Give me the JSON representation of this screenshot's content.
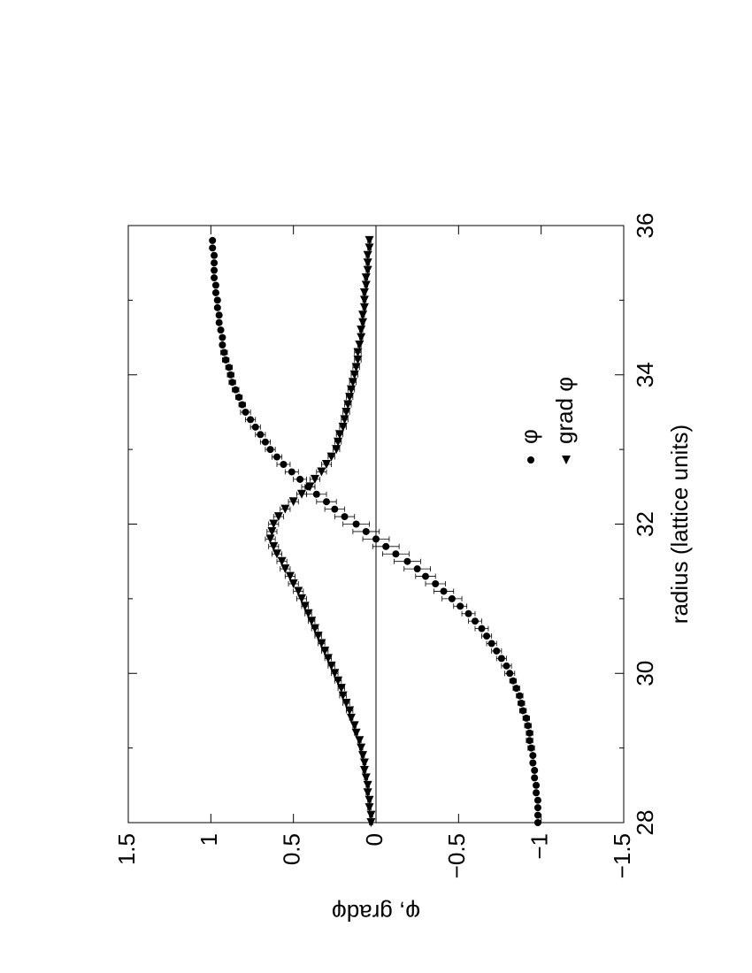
{
  "chart_data": {
    "type": "scatter",
    "x_label": "radius (lattice units)",
    "y_label": "φ, gradφ",
    "x": [
      28.0,
      28.1,
      28.2,
      28.3,
      28.4,
      28.5,
      28.6,
      28.7,
      28.8,
      28.9,
      29.0,
      29.1,
      29.2,
      29.3,
      29.4,
      29.5,
      29.6,
      29.7,
      29.8,
      29.9,
      30.0,
      30.1,
      30.2,
      30.3,
      30.4,
      30.5,
      30.6,
      30.7,
      30.8,
      30.9,
      31.0,
      31.1,
      31.2,
      31.3,
      31.4,
      31.5,
      31.6,
      31.7,
      31.8,
      31.9,
      32.0,
      32.1,
      32.2,
      32.3,
      32.4,
      32.5,
      32.6,
      32.7,
      32.8,
      32.9,
      33.0,
      33.1,
      33.2,
      33.3,
      33.4,
      33.5,
      33.6,
      33.7,
      33.8,
      33.9,
      34.0,
      34.1,
      34.2,
      34.3,
      34.4,
      34.5,
      34.6,
      34.7,
      34.8,
      34.9,
      35.0,
      35.1,
      35.2,
      35.3,
      35.4,
      35.5,
      35.6,
      35.7,
      35.8
    ],
    "series": [
      {
        "name": "φ",
        "marker": "circle",
        "color": "#000000",
        "values": [
          -0.98,
          -0.98,
          -0.98,
          -0.98,
          -0.97,
          -0.97,
          -0.96,
          -0.96,
          -0.95,
          -0.95,
          -0.94,
          -0.93,
          -0.93,
          -0.92,
          -0.91,
          -0.89,
          -0.88,
          -0.87,
          -0.85,
          -0.83,
          -0.81,
          -0.79,
          -0.76,
          -0.73,
          -0.7,
          -0.67,
          -0.64,
          -0.6,
          -0.56,
          -0.51,
          -0.46,
          -0.41,
          -0.36,
          -0.3,
          -0.25,
          -0.19,
          -0.12,
          -0.06,
          0,
          0.06,
          0.12,
          0.19,
          0.25,
          0.3,
          0.36,
          0.41,
          0.46,
          0.51,
          0.56,
          0.6,
          0.64,
          0.67,
          0.7,
          0.73,
          0.76,
          0.79,
          0.81,
          0.83,
          0.85,
          0.87,
          0.88,
          0.89,
          0.91,
          0.92,
          0.93,
          0.93,
          0.94,
          0.95,
          0.95,
          0.96,
          0.96,
          0.97,
          0.97,
          0.98,
          0.98,
          0.98,
          0.98,
          0.99,
          0.99
        ],
        "errors": [
          0.01,
          0.01,
          0.01,
          0.01,
          0.01,
          0.01,
          0.01,
          0.01,
          0.01,
          0.01,
          0.02,
          0.02,
          0.02,
          0.02,
          0.02,
          0.02,
          0.02,
          0.02,
          0.02,
          0.02,
          0.03,
          0.03,
          0.03,
          0.03,
          0.03,
          0.03,
          0.04,
          0.04,
          0.04,
          0.04,
          0.06,
          0.06,
          0.06,
          0.06,
          0.08,
          0.08,
          0.08,
          0.08,
          0.08,
          0.08,
          0.08,
          0.06,
          0.06,
          0.06,
          0.06,
          0.04,
          0.04,
          0.04,
          0.04,
          0.03,
          0.03,
          0.03,
          0.03,
          0.03,
          0.03,
          0.03,
          0.02,
          0.02,
          0.02,
          0.02,
          0.02,
          0.02,
          0.02,
          0.02,
          0.01,
          0.01,
          0.01,
          0.01,
          0.01,
          0.01,
          0.01,
          0.01,
          0.01,
          0.01,
          0.01,
          0.01,
          0.01,
          0.01,
          0.01
        ]
      },
      {
        "name": "grad φ",
        "marker": "triangle",
        "color": "#000000",
        "values": [
          0.03,
          0.03,
          0.04,
          0.04,
          0.05,
          0.05,
          0.06,
          0.07,
          0.07,
          0.08,
          0.09,
          0.1,
          0.12,
          0.13,
          0.15,
          0.16,
          0.18,
          0.2,
          0.21,
          0.23,
          0.25,
          0.27,
          0.29,
          0.31,
          0.33,
          0.35,
          0.37,
          0.39,
          0.41,
          0.43,
          0.45,
          0.47,
          0.5,
          0.52,
          0.55,
          0.57,
          0.6,
          0.62,
          0.64,
          0.63,
          0.62,
          0.59,
          0.55,
          0.5,
          0.45,
          0.4,
          0.37,
          0.33,
          0.3,
          0.27,
          0.24,
          0.23,
          0.22,
          0.2,
          0.19,
          0.18,
          0.17,
          0.16,
          0.15,
          0.14,
          0.13,
          0.12,
          0.11,
          0.11,
          0.1,
          0.09,
          0.09,
          0.08,
          0.08,
          0.07,
          0.07,
          0.07,
          0.06,
          0.06,
          0.05,
          0.05,
          0.05,
          0.04,
          0.04
        ],
        "errors": [
          0.01,
          0.01,
          0.01,
          0.01,
          0.01,
          0.01,
          0.01,
          0.01,
          0.01,
          0.01,
          0.01,
          0.01,
          0.01,
          0.01,
          0.01,
          0.02,
          0.02,
          0.02,
          0.02,
          0.02,
          0.02,
          0.02,
          0.02,
          0.02,
          0.02,
          0.02,
          0.02,
          0.02,
          0.02,
          0.02,
          0.03,
          0.03,
          0.03,
          0.03,
          0.03,
          0.03,
          0.03,
          0.03,
          0.03,
          0.03,
          0.03,
          0.03,
          0.03,
          0.03,
          0.03,
          0.03,
          0.03,
          0.03,
          0.03,
          0.02,
          0.02,
          0.02,
          0.02,
          0.02,
          0.02,
          0.02,
          0.02,
          0.02,
          0.02,
          0.02,
          0.02,
          0.02,
          0.02,
          0.02,
          0.01,
          0.01,
          0.01,
          0.01,
          0.01,
          0.01,
          0.01,
          0.01,
          0.01,
          0.01,
          0.01,
          0.01,
          0.01,
          0.01,
          0.01
        ]
      }
    ],
    "xlim": [
      28,
      36
    ],
    "xticks": [
      28,
      30,
      32,
      34,
      36
    ],
    "xminorticks": [
      29,
      31,
      33,
      35
    ],
    "ylim": [
      -1.5,
      1.5
    ],
    "yticks": [
      {
        "value": -1.5,
        "label": "−1.5"
      },
      {
        "value": -1,
        "label": "−1"
      },
      {
        "value": -0.5,
        "label": "−0.5"
      },
      0,
      0.5,
      1,
      1.5
    ],
    "zero_line": true,
    "legend": "lower right",
    "rotation": -90
  }
}
